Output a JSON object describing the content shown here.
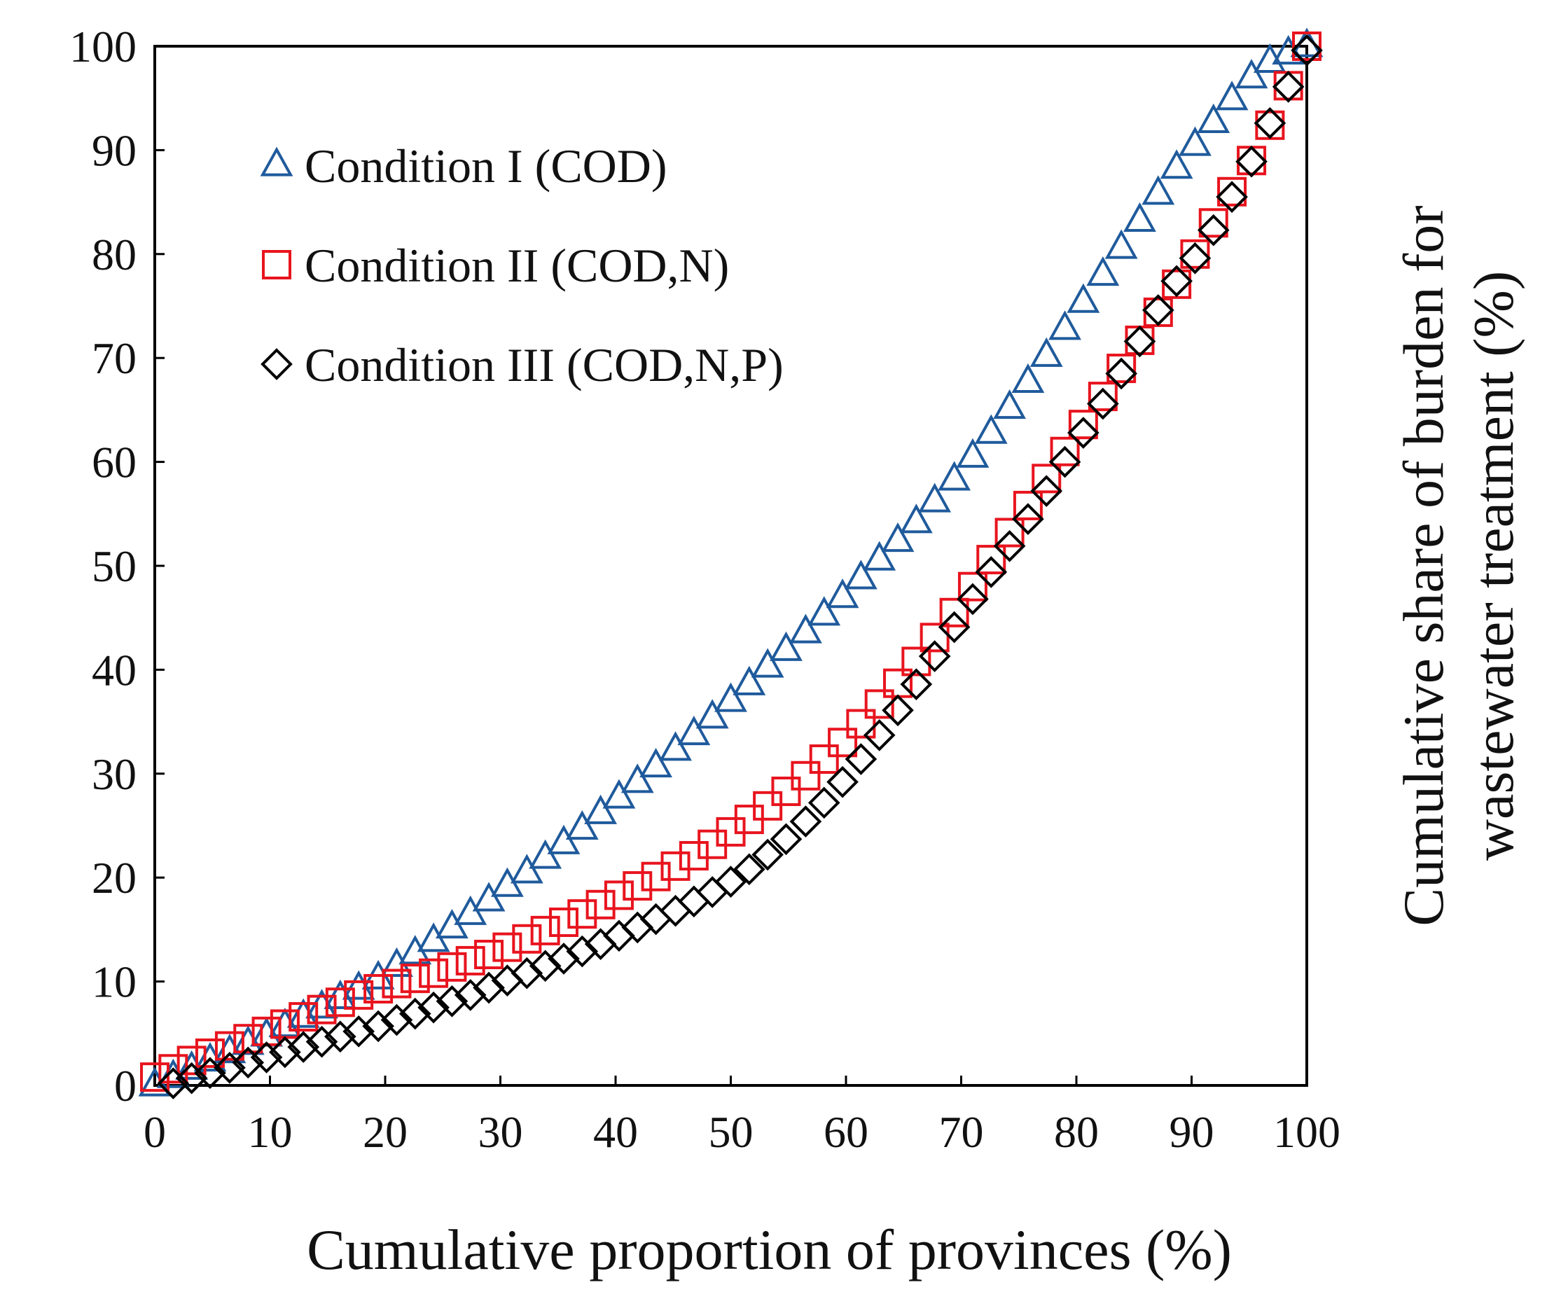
{
  "chart_data": {
    "type": "scatter",
    "title": "",
    "xlabel": "Cumulative proportion  of provinces (%)",
    "ylabel": "Cumulative share of burden for wastewater  treatment  (%)",
    "ylabel_lines": [
      "Cumulative share of burden for",
      "wastewater  treatment  (%)"
    ],
    "xlim": [
      0,
      100
    ],
    "ylim": [
      0,
      100
    ],
    "x_ticks": [
      0,
      10,
      20,
      30,
      40,
      50,
      60,
      70,
      80,
      90,
      100
    ],
    "y_ticks": [
      0,
      10,
      20,
      30,
      40,
      50,
      60,
      70,
      80,
      90,
      100
    ],
    "legend_position": "top-left",
    "grid": false,
    "series": [
      {
        "name": "Condition I (COD)",
        "marker": "triangle",
        "color": "#1f5a9c",
        "x": [
          0,
          1.6,
          3.2,
          4.8,
          6.5,
          8.1,
          9.7,
          11.3,
          12.9,
          14.5,
          16.1,
          17.7,
          19.4,
          21.0,
          22.6,
          24.2,
          25.8,
          27.4,
          29.0,
          30.6,
          32.3,
          33.9,
          35.5,
          37.1,
          38.7,
          40.3,
          41.9,
          43.5,
          45.2,
          46.8,
          48.4,
          50.0,
          51.6,
          53.2,
          54.8,
          56.5,
          58.1,
          59.7,
          61.3,
          62.9,
          64.5,
          66.1,
          67.7,
          69.4,
          71.0,
          72.6,
          74.2,
          75.8,
          77.4,
          79.0,
          80.6,
          82.3,
          83.9,
          85.5,
          87.1,
          88.7,
          90.3,
          91.9,
          93.5,
          95.2,
          96.8,
          98.4,
          100
        ],
        "y": [
          0,
          0.8,
          1.6,
          2.4,
          3.2,
          4.0,
          4.8,
          5.7,
          6.6,
          7.5,
          8.4,
          9.3,
          10.3,
          11.5,
          12.7,
          13.9,
          15.2,
          16.5,
          17.8,
          19.2,
          20.5,
          21.9,
          23.3,
          24.7,
          26.2,
          27.7,
          29.2,
          30.7,
          32.3,
          33.8,
          35.4,
          37.0,
          38.6,
          40.3,
          41.9,
          43.6,
          45.3,
          47.0,
          48.8,
          50.6,
          52.4,
          54.2,
          56.2,
          58.3,
          60.5,
          62.8,
          65.2,
          67.7,
          70.2,
          72.8,
          75.4,
          78.0,
          80.6,
          83.2,
          85.8,
          88.3,
          90.5,
          92.7,
          94.9,
          97.0,
          98.5,
          99.3,
          100
        ]
      },
      {
        "name": "Condition II (COD,N)",
        "marker": "square",
        "color": "#e8141e",
        "x": [
          0,
          1.6,
          3.2,
          4.8,
          6.5,
          8.1,
          9.7,
          11.3,
          12.9,
          14.5,
          16.1,
          17.7,
          19.4,
          21.0,
          22.6,
          24.2,
          25.8,
          27.4,
          29.0,
          30.6,
          32.3,
          33.9,
          35.5,
          37.1,
          38.7,
          40.3,
          41.9,
          43.5,
          45.2,
          46.8,
          48.4,
          50.0,
          51.6,
          53.2,
          54.8,
          56.5,
          58.1,
          59.7,
          61.3,
          62.9,
          64.5,
          66.1,
          67.7,
          69.4,
          71.0,
          72.6,
          74.2,
          75.8,
          77.4,
          79.0,
          80.6,
          82.3,
          83.9,
          85.5,
          87.1,
          88.7,
          90.3,
          91.9,
          93.5,
          95.2,
          96.8,
          98.4,
          100
        ],
        "y": [
          0.8,
          1.6,
          2.4,
          3.1,
          3.8,
          4.5,
          5.2,
          5.9,
          6.6,
          7.3,
          8.0,
          8.7,
          9.3,
          9.8,
          10.3,
          10.8,
          11.4,
          12.0,
          12.6,
          13.3,
          14.1,
          14.9,
          15.7,
          16.5,
          17.4,
          18.3,
          19.2,
          20.1,
          21.1,
          22.1,
          23.2,
          24.4,
          25.6,
          26.9,
          28.3,
          29.8,
          31.4,
          33.0,
          34.8,
          36.7,
          38.7,
          40.8,
          43.1,
          45.5,
          48.0,
          50.6,
          53.2,
          55.8,
          58.4,
          61.0,
          63.6,
          66.3,
          69.0,
          71.7,
          74.4,
          77.1,
          80.0,
          83.0,
          86.0,
          89.0,
          92.4,
          96.2,
          100
        ]
      },
      {
        "name": "Condition III (COD,N,P)",
        "marker": "diamond",
        "color": "#000000",
        "x": [
          1.6,
          3.2,
          4.8,
          6.5,
          8.1,
          9.7,
          11.3,
          12.9,
          14.5,
          16.1,
          17.7,
          19.4,
          21.0,
          22.6,
          24.2,
          25.8,
          27.4,
          29.0,
          30.6,
          32.3,
          33.9,
          35.5,
          37.1,
          38.7,
          40.3,
          41.9,
          43.5,
          45.2,
          46.8,
          48.4,
          50.0,
          51.6,
          53.2,
          54.8,
          56.5,
          58.1,
          59.7,
          61.3,
          62.9,
          64.5,
          66.1,
          67.7,
          69.4,
          71.0,
          72.6,
          74.2,
          75.8,
          77.4,
          79.0,
          80.6,
          82.3,
          83.9,
          85.5,
          87.1,
          88.7,
          90.3,
          91.9,
          93.5,
          95.2,
          96.8,
          98.4,
          100
        ],
        "y": [
          0.2,
          0.7,
          1.2,
          1.7,
          2.2,
          2.7,
          3.2,
          3.7,
          4.2,
          4.7,
          5.2,
          5.7,
          6.3,
          6.9,
          7.5,
          8.1,
          8.7,
          9.4,
          10.1,
          10.8,
          11.5,
          12.2,
          12.9,
          13.6,
          14.4,
          15.2,
          16.0,
          16.8,
          17.7,
          18.6,
          19.6,
          20.8,
          22.2,
          23.7,
          25.4,
          27.2,
          29.2,
          31.4,
          33.7,
          36.1,
          38.6,
          41.3,
          44.1,
          46.8,
          49.4,
          51.9,
          54.5,
          57.2,
          60.0,
          62.8,
          65.6,
          68.5,
          71.6,
          74.6,
          77.4,
          79.6,
          82.3,
          85.5,
          88.9,
          92.6,
          96.1,
          99.6
        ]
      }
    ]
  }
}
